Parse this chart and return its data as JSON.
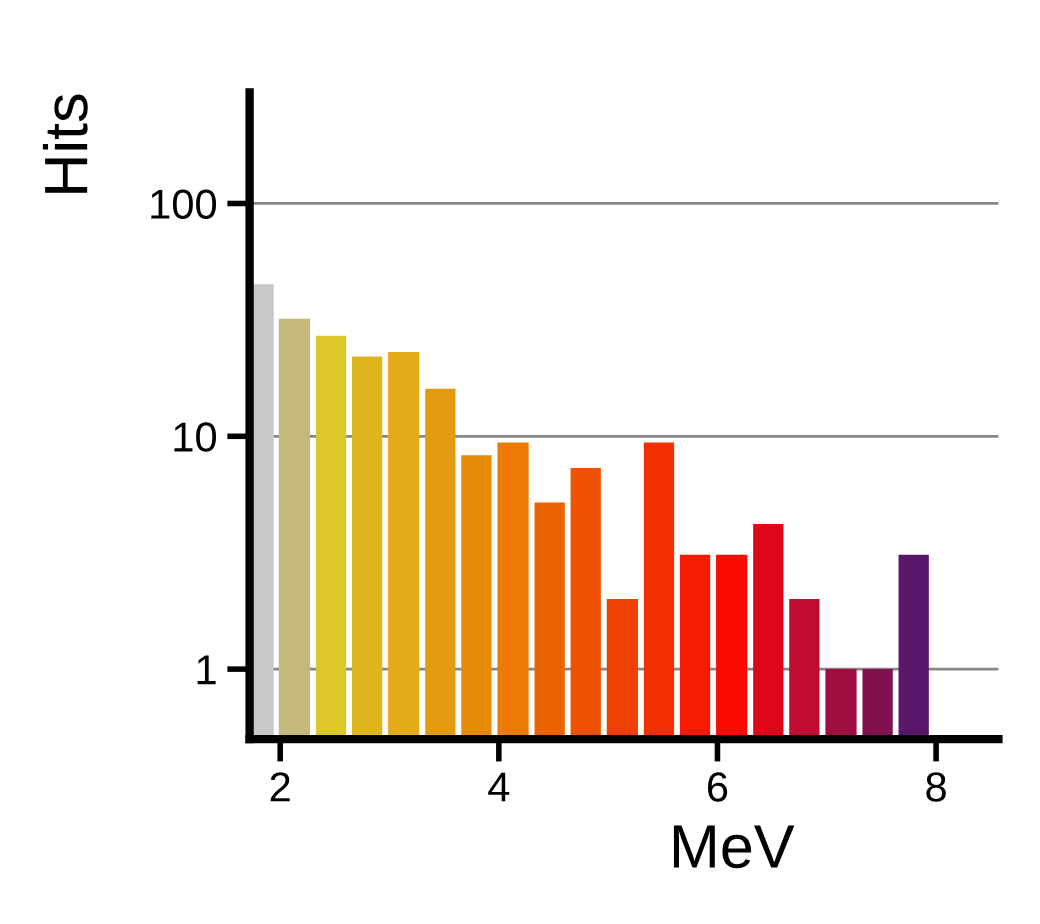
{
  "chart_data": {
    "type": "histogram",
    "xlabel": "MeV",
    "ylabel": "Hits",
    "bins": [
      1.72,
      1.96,
      2.3,
      2.63,
      2.96,
      3.3,
      3.63,
      3.96,
      4.3,
      4.63,
      4.96,
      5.3,
      5.63,
      5.96,
      6.3,
      6.63,
      6.96,
      7.3,
      7.63,
      7.96
    ],
    "values": [
      45,
      32,
      27,
      22,
      23,
      16,
      8.3,
      9.4,
      5.2,
      7.3,
      2.0,
      9.4,
      3.1,
      3.1,
      4.2,
      2.0,
      1.0,
      1.0,
      3.1
    ],
    "colors": [
      "#c8c8c8",
      "#c4b87a",
      "#dcc828",
      "#e0b41c",
      "#e4aa18",
      "#e49a10",
      "#e88a08",
      "#ec7a04",
      "#ec6400",
      "#ee5200",
      "#f04000",
      "#f43000",
      "#f61a00",
      "#fa0a00",
      "#e0061a",
      "#c00a30",
      "#9e0e40",
      "#801050",
      "#5a1668"
    ],
    "log": "y",
    "grid": "y",
    "xlim": [
      1.72,
      8.57
    ],
    "ylim": [
      0.5,
      300
    ],
    "xticks": [
      2,
      4,
      6,
      8
    ],
    "yticks": [
      1,
      10,
      100
    ]
  }
}
